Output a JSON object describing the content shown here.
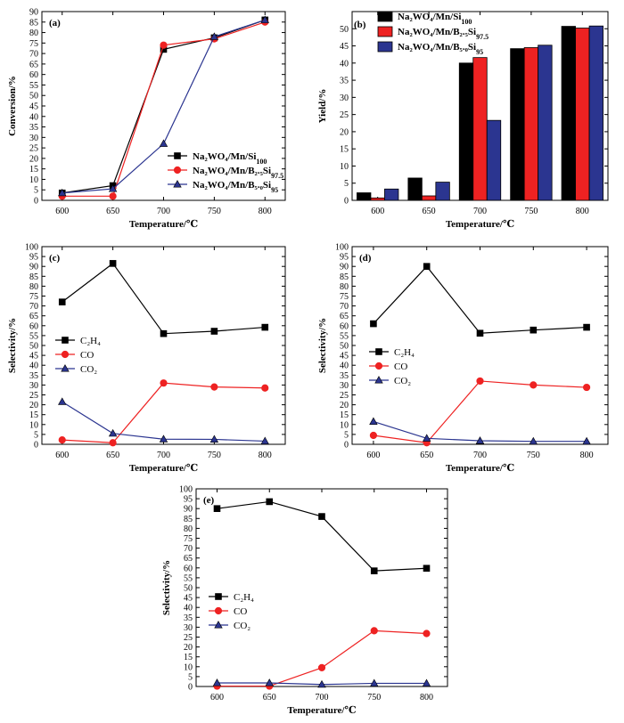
{
  "colors": {
    "black": "#000000",
    "red": "#ee2222",
    "blue": "#2b3590",
    "axis": "#000000"
  },
  "chart_data": [
    {
      "id": "a",
      "panel_label": "(a)",
      "type": "line",
      "xlabel": "Temperature/℃",
      "ylabel": "Conversion/%",
      "x": [
        600,
        650,
        700,
        750,
        800
      ],
      "xlim": [
        580,
        820
      ],
      "ylim": [
        0,
        90
      ],
      "yticks": [
        0,
        5,
        10,
        15,
        20,
        25,
        30,
        35,
        40,
        45,
        50,
        55,
        60,
        65,
        70,
        75,
        80,
        85,
        90
      ],
      "legend_position": "center-right",
      "series": [
        {
          "base": "Na₂WO₄/Mn/Si",
          "sub": "100",
          "color": "#000000",
          "marker": "square",
          "values": [
            3.5,
            7,
            72,
            77.5,
            86
          ]
        },
        {
          "base": "Na₂WO₄/Mn/B₂.₅Si",
          "sub": "97.5",
          "color": "#ee2222",
          "marker": "circle",
          "values": [
            2,
            2,
            74,
            77,
            85
          ]
        },
        {
          "base": "Na₂WO₄/Mn/B₅.₀Si",
          "sub": "95",
          "color": "#2b3590",
          "marker": "triangle",
          "values": [
            3.5,
            5.5,
            27,
            78,
            86
          ]
        }
      ]
    },
    {
      "id": "b",
      "panel_label": "(b)",
      "type": "bar",
      "xlabel": "Temperature/℃",
      "ylabel": "Yield/%",
      "categories": [
        "600",
        "650",
        "700",
        "750",
        "800"
      ],
      "ylim": [
        0,
        55
      ],
      "yticks": [
        0,
        5,
        10,
        15,
        20,
        25,
        30,
        35,
        40,
        45,
        50
      ],
      "legend_position": "top-left",
      "series": [
        {
          "base": "Na₂WO₄/Mn/Si",
          "sub": "100",
          "color": "#000000",
          "values": [
            2.2,
            6.5,
            40,
            44.2,
            50.7
          ]
        },
        {
          "base": "Na₂WO₄/Mn/B₂.₅Si",
          "sub": "97.5",
          "color": "#ee2222",
          "values": [
            0.7,
            1.3,
            41.6,
            44.5,
            50.2
          ]
        },
        {
          "base": "Na₂WO₄/Mn/B₅.₀Si",
          "sub": "95",
          "color": "#2b3590",
          "values": [
            3.3,
            5.3,
            23.3,
            45.2,
            50.8
          ]
        }
      ]
    },
    {
      "id": "c",
      "panel_label": "(c)",
      "type": "line",
      "xlabel": "Temperature/℃",
      "ylabel": "Selectivity/%",
      "x": [
        600,
        650,
        700,
        750,
        800
      ],
      "xlim": [
        580,
        820
      ],
      "ylim": [
        0,
        100
      ],
      "yticks": [
        0,
        5,
        10,
        15,
        20,
        25,
        30,
        35,
        40,
        45,
        50,
        55,
        60,
        65,
        70,
        75,
        80,
        85,
        90,
        95,
        100
      ],
      "legend_position": "center-left",
      "series": [
        {
          "base": "C₂H₄",
          "sub": "",
          "color": "#000000",
          "marker": "square",
          "values": [
            72,
            91.5,
            56,
            57.2,
            59.2
          ]
        },
        {
          "base": "CO",
          "sub": "",
          "color": "#ee2222",
          "marker": "circle",
          "values": [
            2.2,
            0.8,
            31,
            29,
            28.5
          ]
        },
        {
          "base": "CO₂",
          "sub": "",
          "color": "#2b3590",
          "marker": "triangle",
          "values": [
            21.5,
            5.5,
            2.6,
            2.5,
            1.6
          ]
        }
      ]
    },
    {
      "id": "d",
      "panel_label": "(d)",
      "type": "line",
      "xlabel": "Temperature/℃",
      "ylabel": "Selectivity/%",
      "x": [
        600,
        650,
        700,
        750,
        800
      ],
      "xlim": [
        580,
        820
      ],
      "ylim": [
        0,
        100
      ],
      "yticks": [
        0,
        5,
        10,
        15,
        20,
        25,
        30,
        35,
        40,
        45,
        50,
        55,
        60,
        65,
        70,
        75,
        80,
        85,
        90,
        95,
        100
      ],
      "legend_position": "center-left",
      "series": [
        {
          "base": "C₂H₄",
          "sub": "",
          "color": "#000000",
          "marker": "square",
          "values": [
            61,
            90,
            56.2,
            57.8,
            59.2
          ]
        },
        {
          "base": "CO",
          "sub": "",
          "color": "#ee2222",
          "marker": "circle",
          "values": [
            4.5,
            0.8,
            32,
            30,
            28.8
          ]
        },
        {
          "base": "CO₂",
          "sub": "",
          "color": "#2b3590",
          "marker": "triangle",
          "values": [
            11.5,
            3,
            1.8,
            1.5,
            1.5
          ]
        }
      ]
    },
    {
      "id": "e",
      "panel_label": "(e)",
      "type": "line",
      "xlabel": "Temperature/℃",
      "ylabel": "Selectivity/%",
      "x": [
        600,
        650,
        700,
        750,
        800
      ],
      "xlim": [
        580,
        820
      ],
      "ylim": [
        0,
        100
      ],
      "yticks": [
        0,
        5,
        10,
        15,
        20,
        25,
        30,
        35,
        40,
        45,
        50,
        55,
        60,
        65,
        70,
        75,
        80,
        85,
        90,
        95,
        100
      ],
      "legend_position": "center-left",
      "series": [
        {
          "base": "C₂H₄",
          "sub": "",
          "color": "#000000",
          "marker": "square",
          "values": [
            90,
            93.5,
            86,
            58.5,
            59.8
          ]
        },
        {
          "base": "CO",
          "sub": "",
          "color": "#ee2222",
          "marker": "circle",
          "values": [
            0.2,
            0.2,
            9.5,
            28.2,
            26.8
          ]
        },
        {
          "base": "CO₂",
          "sub": "",
          "color": "#2b3590",
          "marker": "triangle",
          "values": [
            1.8,
            1.8,
            1,
            1.6,
            1.6
          ]
        }
      ]
    }
  ]
}
